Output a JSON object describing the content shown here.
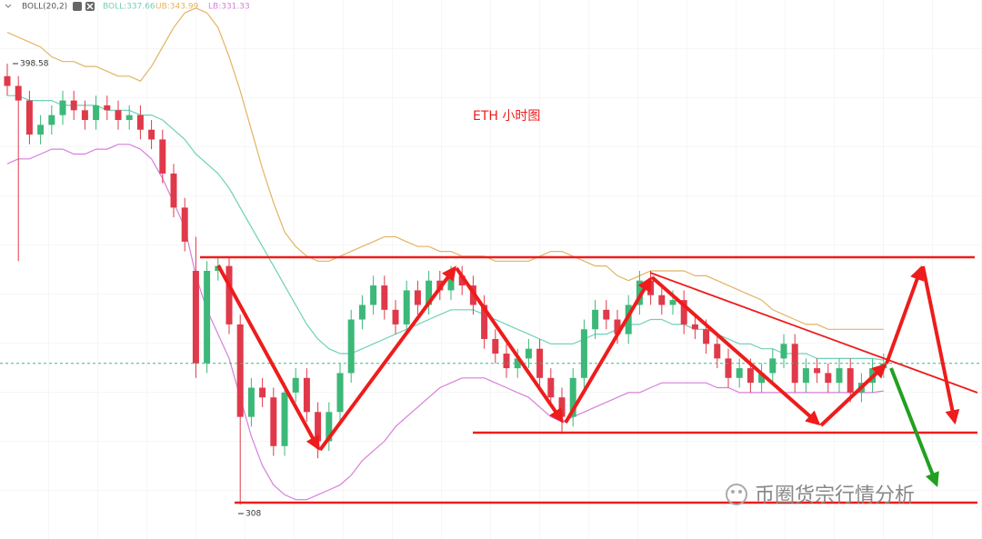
{
  "chart_data": {
    "type": "candlestick",
    "title": "ETH  小时图",
    "indicator": "BOLL(20,2)",
    "up_color": "#3cb878",
    "down_color": "#e0394a",
    "ylim": [
      300.91,
      411.65
    ],
    "high_marker": 398.58,
    "low_marker": 308,
    "open": [
      396,
      394,
      391,
      384,
      386,
      388,
      391,
      389,
      387,
      390,
      389,
      387,
      388,
      385,
      383,
      376,
      369,
      356,
      337,
      356,
      357,
      345,
      326,
      332,
      330,
      320,
      331,
      334,
      327,
      321,
      327,
      335,
      346,
      349,
      353,
      348,
      345,
      352,
      349,
      354,
      352,
      355,
      353,
      349,
      342,
      339,
      336,
      338,
      340,
      334,
      330,
      326,
      334,
      344,
      348,
      346,
      343,
      349,
      354,
      351,
      349,
      350,
      345,
      344,
      341,
      338,
      334,
      336,
      333,
      335,
      338,
      341,
      333,
      336,
      335,
      333,
      336,
      331,
      333,
      336
    ],
    "high": [
      398.58,
      396,
      393,
      388,
      390,
      393,
      393,
      391,
      392,
      392,
      391,
      390,
      390,
      387,
      385,
      378,
      371,
      363,
      358,
      359,
      359,
      347,
      334,
      334,
      332,
      333,
      336,
      336,
      329,
      329,
      337,
      348,
      351,
      355,
      355,
      350,
      354,
      354,
      356,
      356,
      357,
      357,
      355,
      351,
      344,
      341,
      340,
      342,
      342,
      336,
      332,
      336,
      346,
      350,
      350,
      348,
      351,
      356,
      356,
      353,
      352,
      352,
      347,
      346,
      343,
      340,
      338,
      338,
      337,
      340,
      343,
      343,
      338,
      338,
      337,
      338,
      338,
      335,
      338,
      339
    ],
    "low": [
      392,
      358,
      382,
      382,
      384,
      386,
      387,
      385,
      385,
      387,
      385,
      385,
      383,
      381,
      374,
      367,
      360,
      334,
      335,
      354,
      343,
      308,
      324,
      328,
      318,
      318,
      329,
      325,
      317.5,
      319,
      325,
      333,
      344,
      347,
      346,
      343,
      343,
      347,
      347,
      350,
      350,
      351,
      347,
      340,
      337,
      334,
      334,
      336,
      332,
      328,
      322.5,
      324,
      332,
      342,
      344,
      341,
      341,
      347,
      349,
      347,
      347,
      343,
      342,
      339,
      336,
      332,
      332,
      331,
      331,
      333,
      336,
      331,
      331,
      333,
      331,
      331,
      329,
      329,
      331,
      334
    ],
    "close": [
      394,
      391,
      384,
      386,
      388,
      391,
      389,
      387,
      390,
      389,
      387,
      388,
      385,
      383,
      376,
      369,
      362,
      337,
      356,
      357,
      345,
      326,
      332,
      330,
      320,
      331,
      334,
      327,
      321,
      327,
      335,
      346,
      349,
      353,
      348,
      345,
      352,
      349,
      354,
      352,
      355,
      353,
      349,
      342,
      339,
      336,
      338,
      340,
      334,
      330,
      326,
      334,
      344,
      348,
      346,
      343,
      349,
      354,
      351,
      349,
      350,
      345,
      344,
      341,
      338,
      334,
      336,
      333,
      335,
      338,
      341,
      333,
      336,
      335,
      333,
      336,
      331,
      333,
      336,
      337
    ],
    "bands": [
      {
        "label": "BOLL:337.66",
        "color": "#6fd0b8",
        "values": [
          392,
          392,
          391,
          391,
          391,
          390,
          390,
          390,
          390,
          389,
          389,
          389,
          388,
          388,
          387,
          385,
          383,
          380,
          378,
          376,
          373,
          369,
          365,
          361,
          357,
          353,
          349,
          345,
          342,
          340,
          339,
          339,
          340,
          341,
          342,
          343,
          344,
          345,
          346,
          347,
          348,
          348,
          348,
          347,
          346,
          345,
          344,
          343,
          342,
          341,
          341,
          341,
          342,
          343,
          343,
          344,
          345,
          345,
          346,
          346,
          345,
          345,
          344,
          344,
          343,
          342,
          341,
          341,
          340,
          340,
          339,
          339,
          339,
          338,
          338,
          338,
          338,
          338,
          338,
          337.66
        ]
      },
      {
        "label": "UB:343.99",
        "color": "#e2b462",
        "values": [
          405,
          404,
          403,
          402,
          400,
          399,
          399,
          398,
          398,
          397,
          396,
          396,
          395,
          398,
          402,
          406,
          409,
          410,
          409,
          406,
          400,
          393,
          385,
          377,
          370,
          364,
          361,
          359,
          358,
          358,
          359,
          360,
          361,
          362,
          363,
          363,
          362,
          361,
          361,
          360,
          360,
          359,
          359,
          359,
          358,
          358,
          358,
          358,
          359,
          360,
          360,
          359,
          358,
          357,
          357,
          355,
          354,
          355,
          356,
          356,
          356,
          356,
          355,
          355,
          354,
          353,
          352,
          351,
          350,
          348,
          347,
          346,
          345,
          345,
          344,
          344,
          344,
          344,
          344,
          343.99
        ]
      },
      {
        "label": "LB:331.33",
        "color": "#d77fdb",
        "values": [
          378,
          379,
          379,
          380,
          381,
          381,
          380,
          380,
          381,
          381,
          382,
          382,
          381,
          379,
          375,
          370,
          365,
          355,
          348,
          343,
          338,
          330,
          322,
          316,
          312,
          310,
          309,
          309,
          310,
          311,
          312,
          314,
          317,
          319,
          321,
          324,
          326,
          328,
          330,
          332,
          333,
          334,
          334,
          334,
          333,
          332,
          331,
          330,
          328,
          326,
          325,
          326,
          327,
          328,
          329,
          330,
          331,
          331,
          332,
          333,
          333,
          333,
          333,
          333,
          332,
          332,
          331,
          331,
          331,
          331,
          331,
          331,
          331,
          331,
          331,
          331,
          331,
          331,
          331,
          331.33
        ]
      }
    ]
  },
  "watermark": "币圈货宗行情分析"
}
